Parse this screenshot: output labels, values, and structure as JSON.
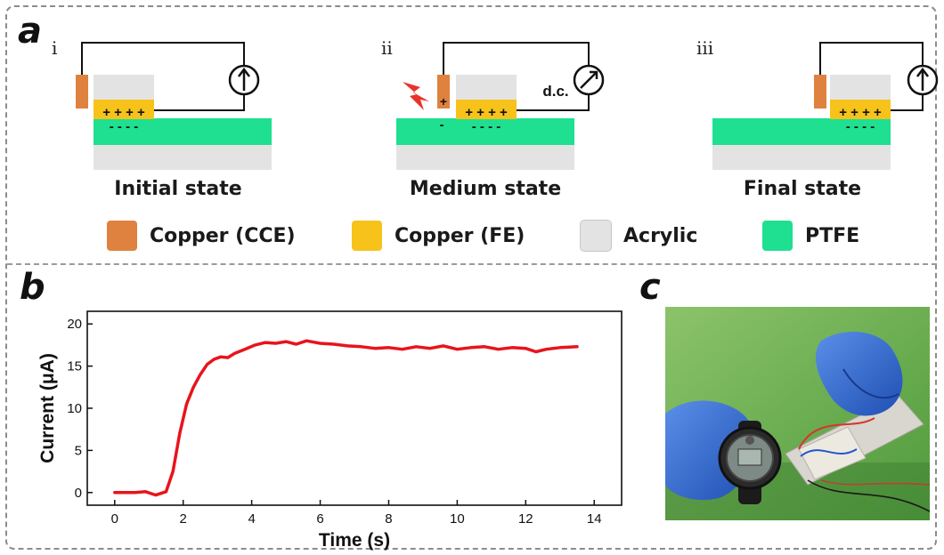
{
  "panels": {
    "a": "a",
    "b": "b",
    "c": "c"
  },
  "schematic": {
    "steps": [
      {
        "roman": "i",
        "label": "Initial state",
        "meter": "up-arrow-ammeter",
        "fe_charges": "+ + + +",
        "ptfe_charges": "- - - -"
      },
      {
        "roman": "ii",
        "label": "Medium state",
        "meter": "diagonal-arrow-ammeter",
        "meter_text": "d.c.",
        "fe_charges": "+ + + +",
        "ptfe_charges": "- - - -",
        "cce_charge": "+",
        "ptfe_extra_charge": "-",
        "discharge_icon": "lightning-bolt-icon"
      },
      {
        "roman": "iii",
        "label": "Final state",
        "meter": "up-arrow-ammeter",
        "fe_charges": "+ + + +",
        "ptfe_charges": "- - - -"
      }
    ],
    "colors": {
      "copper_cce": "#e0823f",
      "copper_fe": "#f7c21a",
      "acrylic": "#e3e3e3",
      "ptfe": "#1ee090",
      "wire": "#111111",
      "spark": "#e8332b"
    }
  },
  "legend": [
    {
      "label": "Copper (CCE)",
      "color": "#e0823f"
    },
    {
      "label": "Copper (FE)",
      "color": "#f7c21a"
    },
    {
      "label": "Acrylic",
      "color": "#e3e3e3"
    },
    {
      "label": "PTFE",
      "color": "#1ee090"
    }
  ],
  "chart_data": {
    "type": "line",
    "xlabel": "Time (s)",
    "ylabel": "Current (μA)",
    "xlim": [
      -0.8,
      14.8
    ],
    "ylim": [
      -1.5,
      21.5
    ],
    "xticks": [
      0,
      2,
      4,
      6,
      8,
      10,
      12,
      14
    ],
    "yticks": [
      0,
      5,
      10,
      15,
      20
    ],
    "series": [
      {
        "color": "#e8141b",
        "x": [
          0,
          0.3,
          0.6,
          0.9,
          1.2,
          1.5,
          1.7,
          1.9,
          2.1,
          2.3,
          2.5,
          2.7,
          2.9,
          3.1,
          3.3,
          3.5,
          3.8,
          4.1,
          4.4,
          4.7,
          5.0,
          5.3,
          5.6,
          6.0,
          6.4,
          6.8,
          7.2,
          7.6,
          8.0,
          8.4,
          8.8,
          9.2,
          9.6,
          10.0,
          10.4,
          10.8,
          11.2,
          11.6,
          12.0,
          12.3,
          12.6,
          13.0,
          13.5
        ],
        "y": [
          0,
          0,
          0,
          0.1,
          -0.3,
          0.1,
          2.5,
          7,
          10.5,
          12.5,
          14,
          15.2,
          15.8,
          16.1,
          16.0,
          16.5,
          17.0,
          17.5,
          17.8,
          17.7,
          17.9,
          17.6,
          18.0,
          17.7,
          17.6,
          17.4,
          17.3,
          17.1,
          17.2,
          17.0,
          17.3,
          17.1,
          17.4,
          17.0,
          17.2,
          17.3,
          17.0,
          17.2,
          17.1,
          16.7,
          17.0,
          17.2,
          17.3
        ]
      }
    ]
  }
}
